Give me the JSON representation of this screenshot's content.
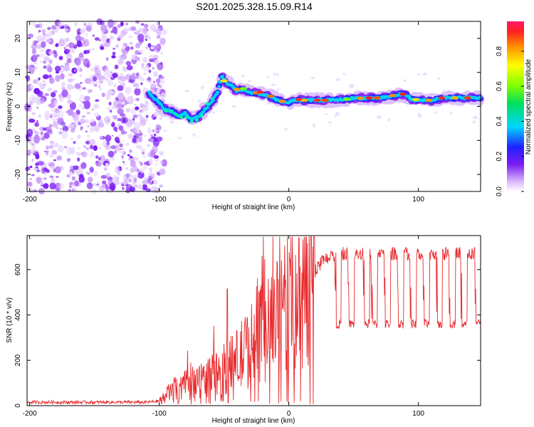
{
  "title": "S201.2025.328.15.09.R14",
  "chart_data": [
    {
      "type": "heatmap",
      "name": "spectrogram",
      "xlabel": "Height of straight line (km)",
      "ylabel": "Frequency (Hz)",
      "xlim": [
        -202,
        148
      ],
      "ylim": [
        -25,
        25
      ],
      "xticks": [
        -200,
        -100,
        0,
        100
      ],
      "yticks": [
        -20,
        -10,
        0,
        10,
        20
      ],
      "noise_region": [
        -202,
        -100
      ],
      "signal_track": {
        "x": [
          -108,
          -100,
          -95,
          -90,
          -85,
          -80,
          -75,
          -70,
          -65,
          -60,
          -55,
          -52,
          -48,
          -44,
          -40,
          -35,
          -30,
          -25,
          -20,
          -15,
          -10,
          -5,
          0,
          5,
          10,
          20,
          30,
          40,
          50,
          60,
          70,
          80,
          85,
          90,
          95,
          100,
          110,
          120,
          130,
          140,
          148
        ],
        "freq": [
          4,
          1,
          -1,
          -1.5,
          -3,
          -2,
          -4,
          -3,
          -1,
          1,
          4,
          9,
          7,
          6,
          4.5,
          5,
          4,
          4,
          3.5,
          3,
          2,
          1.5,
          1,
          2,
          1.8,
          1.8,
          1.8,
          2,
          2.4,
          2.5,
          2.5,
          3,
          3.5,
          3.5,
          2,
          1.8,
          1.8,
          2.5,
          2.5,
          2.5,
          2.5
        ]
      },
      "colorbar": {
        "label": "Normalized spectral amplitude",
        "ticks": [
          0.0,
          0.2,
          0.4,
          0.6,
          0.8
        ],
        "range": [
          0,
          0.97
        ]
      }
    },
    {
      "type": "line",
      "name": "snr",
      "xlabel": "Height of straight line (km)",
      "ylabel": "SNR (10 * v/v)",
      "xlim": [
        -202,
        148
      ],
      "ylim": [
        0,
        750
      ],
      "xticks": [
        -200,
        -100,
        0,
        100
      ],
      "yticks": [
        0,
        200,
        400,
        600
      ],
      "color": "#e8282b",
      "trend_x": [
        -202,
        -150,
        -110,
        -100,
        -95,
        -90,
        -80,
        -70,
        -60,
        -50,
        -40,
        -30,
        -20,
        -10,
        0,
        10,
        15,
        20,
        25,
        30,
        35,
        40,
        50,
        60,
        80,
        100,
        120,
        140,
        148
      ],
      "trend_y": [
        15,
        15,
        15,
        20,
        45,
        70,
        90,
        110,
        130,
        160,
        200,
        260,
        320,
        380,
        430,
        500,
        560,
        620,
        660,
        680,
        690,
        700,
        700,
        700,
        700,
        700,
        700,
        700,
        700
      ],
      "drop_level": 360,
      "drop_positions_x": [
        36,
        46,
        58,
        64,
        74,
        84,
        94,
        104,
        114,
        124,
        133,
        144
      ]
    }
  ]
}
